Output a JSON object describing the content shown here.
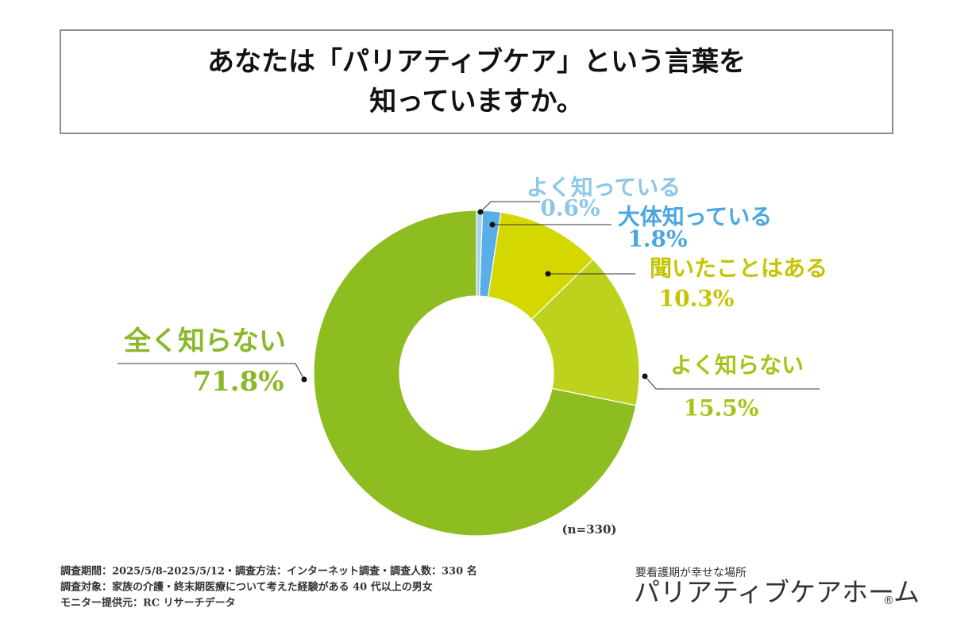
{
  "chart_data": {
    "type": "donut",
    "title": [
      "あなたは「パリアティブケア」という言葉を",
      "知っていますか。"
    ],
    "categories": [
      "よく知っている",
      "大体知っている",
      "聞いたことはある",
      "よく知らない",
      "全く知らない"
    ],
    "values": [
      0.6,
      1.8,
      10.3,
      15.5,
      71.8
    ],
    "value_labels": [
      "0.6%",
      "1.8%",
      "10.3%",
      "15.5%",
      "71.8%"
    ],
    "colors": [
      "#a6d3f2",
      "#5aaee6",
      "#d4d800",
      "#bdd21c",
      "#8ebd22"
    ],
    "label_colors": [
      "#8cc6ea",
      "#4da6e0",
      "#c4c400",
      "#a8c316",
      "#8ab82a"
    ],
    "note": "(n=330)"
  },
  "footer": {
    "survey": [
      "調査期間：2025/5/8-2025/5/12・調査方法：インターネット調査・調査人数：330 名",
      "調査対象：家族の介護・終末期医療について考えた経験がある 40 代以上の男女",
      "モニター提供元：RC リサーチデータ"
    ],
    "logo_tagline": "要看護期が幸せな場所",
    "logo_name": "パリアティブケアホーム",
    "logo_mark": "®"
  }
}
